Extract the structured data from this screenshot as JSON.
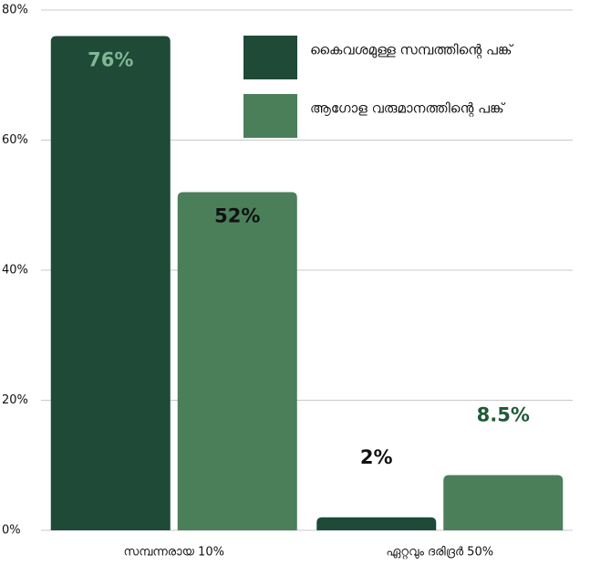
{
  "chart_data": {
    "type": "bar",
    "categories": [
      "സമ്പന്നരായ 10%",
      "ഏറ്റവും ദരിദ്രർ 50%"
    ],
    "series": [
      {
        "name": "കൈവശമുള്ള സമ്പത്തിന്റെ പങ്ക്",
        "color": "#1f4a38",
        "values": [
          76,
          2
        ],
        "value_labels": [
          "76%",
          "2%"
        ],
        "label_colors": [
          "#7fb894",
          "#111111"
        ]
      },
      {
        "name": "ആഗോള വരുമാനത്തിന്റെ പങ്ക്",
        "color": "#4a7f5a",
        "values": [
          52,
          8.5
        ],
        "value_labels": [
          "52%",
          "8.5%"
        ],
        "label_colors": [
          "#111111",
          "#1f5a36"
        ]
      }
    ],
    "ylim": [
      0,
      80
    ],
    "yticks": [
      {
        "value": 0,
        "label": "0%"
      },
      {
        "value": 20,
        "label": "20%"
      },
      {
        "value": 40,
        "label": "40%"
      },
      {
        "value": 60,
        "label": "60%"
      },
      {
        "value": 80,
        "label": "80%"
      }
    ],
    "grid": true,
    "legend": "top-right"
  }
}
